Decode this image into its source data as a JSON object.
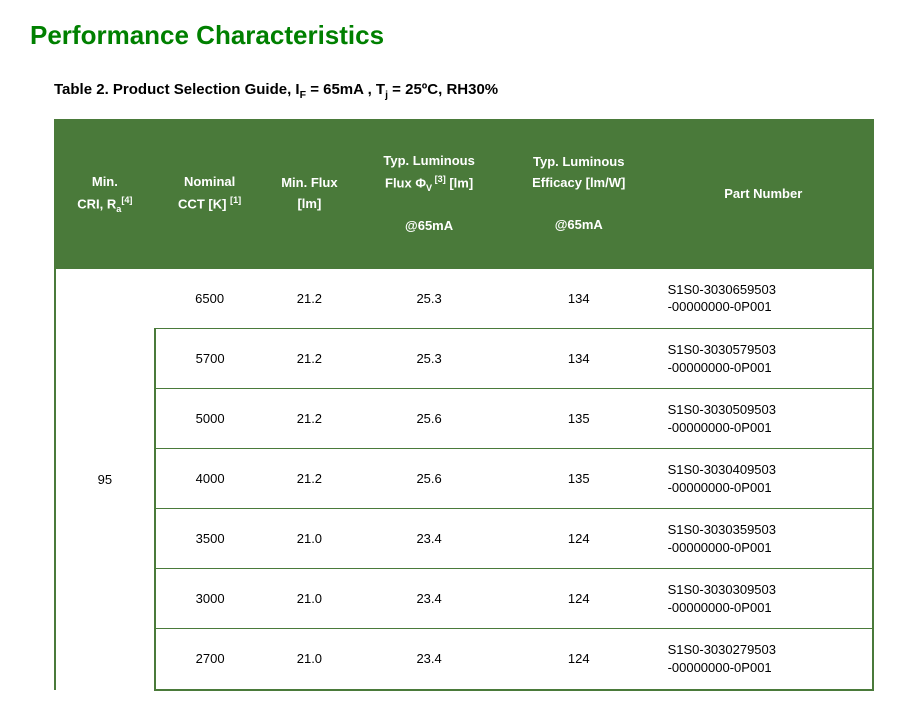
{
  "section_title": "Performance Characteristics",
  "table_caption_prefix": "Table 2. Product Selection Guide, I",
  "table_caption_sub1": "F",
  "table_caption_mid": " = 65mA , T",
  "table_caption_sub2": "j",
  "table_caption_suffix": " = 25ºC, RH30%",
  "colors": {
    "heading_green": "#008000",
    "table_green": "#4a7a3a",
    "text": "#000000",
    "header_text": "#ffffff",
    "background": "#ffffff"
  },
  "columns": [
    {
      "key": "cri",
      "label_l1": "Min.",
      "label_l2_pre": "CRI, R",
      "label_l2_sub": "a",
      "label_l2_sup": "[4]"
    },
    {
      "key": "cct",
      "label_l1": "Nominal",
      "label_l2_pre": "CCT [K] ",
      "label_l2_sup": "[1]"
    },
    {
      "key": "minflux",
      "label_l1": "Min. Flux",
      "label_l2": "[lm]"
    },
    {
      "key": "typflux",
      "label_l1": "Typ. Luminous",
      "label_l2_pre": "Flux Φ",
      "label_l2_sub": "V",
      "label_l2_sup": " [3]",
      "label_l2_post": " [lm]",
      "label_l3": "@65mA"
    },
    {
      "key": "eff",
      "label_l1": "Typ. Luminous",
      "label_l2": "Efficacy [lm/W]",
      "label_l3": "@65mA"
    },
    {
      "key": "part",
      "label": "Part Number"
    }
  ],
  "cri_group_value": "95",
  "rows": [
    {
      "cct": "6500",
      "minflux": "21.2",
      "typflux": "25.3",
      "eff": "134",
      "part_l1": "S1S0-3030659503",
      "part_l2": "-00000000-0P001"
    },
    {
      "cct": "5700",
      "minflux": "21.2",
      "typflux": "25.3",
      "eff": "134",
      "part_l1": "S1S0-3030579503",
      "part_l2": "-00000000-0P001"
    },
    {
      "cct": "5000",
      "minflux": "21.2",
      "typflux": "25.6",
      "eff": "135",
      "part_l1": "S1S0-3030509503",
      "part_l2": "-00000000-0P001"
    },
    {
      "cct": "4000",
      "minflux": "21.2",
      "typflux": "25.6",
      "eff": "135",
      "part_l1": "S1S0-3030409503",
      "part_l2": "-00000000-0P001"
    },
    {
      "cct": "3500",
      "minflux": "21.0",
      "typflux": "23.4",
      "eff": "124",
      "part_l1": "S1S0-3030359503",
      "part_l2": "-00000000-0P001"
    },
    {
      "cct": "3000",
      "minflux": "21.0",
      "typflux": "23.4",
      "eff": "124",
      "part_l1": "S1S0-3030309503",
      "part_l2": "-00000000-0P001"
    },
    {
      "cct": "2700",
      "minflux": "21.0",
      "typflux": "23.4",
      "eff": "124",
      "part_l1": "S1S0-3030279503",
      "part_l2": "-00000000-0P001"
    }
  ]
}
